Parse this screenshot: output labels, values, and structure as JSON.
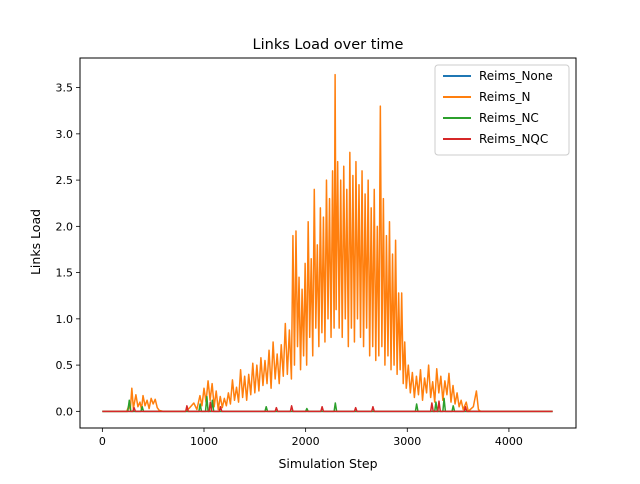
{
  "chart_data": {
    "type": "line",
    "title": "Links Load over time",
    "xlabel": "Simulation Step",
    "ylabel": "Links Load",
    "xlim": [
      -220,
      4660
    ],
    "ylim": [
      -0.18,
      3.82
    ],
    "xticks": [
      0,
      1000,
      2000,
      3000,
      4000
    ],
    "xtick_labels": [
      "0",
      "1000",
      "2000",
      "3000",
      "4000"
    ],
    "yticks": [
      0.0,
      0.5,
      1.0,
      1.5,
      2.0,
      2.5,
      3.0,
      3.5
    ],
    "ytick_labels": [
      "0.0",
      "0.5",
      "1.0",
      "1.5",
      "2.0",
      "2.5",
      "3.0",
      "3.5"
    ],
    "grid": false,
    "legend_position": "top-right",
    "series": [
      {
        "name": "Reims_None",
        "color": "#1f77b4",
        "points": [
          [
            0,
            0
          ],
          [
            4430,
            0
          ]
        ]
      },
      {
        "name": "Reims_N",
        "color": "#ff7f0e",
        "points": [
          [
            0,
            0
          ],
          [
            240,
            0
          ],
          [
            260,
            0.06
          ],
          [
            275,
            0.02
          ],
          [
            290,
            0.25
          ],
          [
            305,
            0.03
          ],
          [
            330,
            0.18
          ],
          [
            350,
            0.05
          ],
          [
            370,
            0.1
          ],
          [
            385,
            0.02
          ],
          [
            400,
            0.17
          ],
          [
            420,
            0.06
          ],
          [
            440,
            0.12
          ],
          [
            460,
            0.03
          ],
          [
            480,
            0.14
          ],
          [
            500,
            0.08
          ],
          [
            520,
            0.13
          ],
          [
            540,
            0.04
          ],
          [
            560,
            0.01
          ],
          [
            600,
            0.0
          ],
          [
            820,
            0.0
          ],
          [
            860,
            0.04
          ],
          [
            900,
            0.09
          ],
          [
            930,
            0.02
          ],
          [
            960,
            0.17
          ],
          [
            980,
            0.06
          ],
          [
            1000,
            0.25
          ],
          [
            1020,
            0.1
          ],
          [
            1040,
            0.33
          ],
          [
            1060,
            0.12
          ],
          [
            1080,
            0.3
          ],
          [
            1100,
            0.05
          ],
          [
            1120,
            0.22
          ],
          [
            1140,
            0.02
          ],
          [
            1160,
            0.16
          ],
          [
            1180,
            0.04
          ],
          [
            1200,
            0.14
          ],
          [
            1220,
            0.06
          ],
          [
            1240,
            0.2
          ],
          [
            1260,
            0.08
          ],
          [
            1280,
            0.34
          ],
          [
            1300,
            0.12
          ],
          [
            1320,
            0.26
          ],
          [
            1340,
            0.1
          ],
          [
            1360,
            0.45
          ],
          [
            1380,
            0.15
          ],
          [
            1400,
            0.38
          ],
          [
            1420,
            0.12
          ],
          [
            1440,
            0.4
          ],
          [
            1460,
            0.18
          ],
          [
            1480,
            0.52
          ],
          [
            1500,
            0.2
          ],
          [
            1520,
            0.5
          ],
          [
            1540,
            0.22
          ],
          [
            1560,
            0.58
          ],
          [
            1580,
            0.28
          ],
          [
            1600,
            0.55
          ],
          [
            1620,
            0.3
          ],
          [
            1640,
            0.66
          ],
          [
            1660,
            0.25
          ],
          [
            1680,
            0.75
          ],
          [
            1700,
            0.35
          ],
          [
            1720,
            0.62
          ],
          [
            1740,
            0.3
          ],
          [
            1760,
            0.72
          ],
          [
            1780,
            0.38
          ],
          [
            1800,
            0.95
          ],
          [
            1820,
            0.4
          ],
          [
            1840,
            0.88
          ],
          [
            1860,
            0.35
          ],
          [
            1875,
            1.9
          ],
          [
            1890,
            0.5
          ],
          [
            1905,
            1.95
          ],
          [
            1920,
            0.7
          ],
          [
            1935,
            1.45
          ],
          [
            1950,
            0.45
          ],
          [
            1965,
            1.32
          ],
          [
            1980,
            0.6
          ],
          [
            1995,
            1.6
          ],
          [
            2010,
            0.5
          ],
          [
            2025,
            2.05
          ],
          [
            2040,
            0.8
          ],
          [
            2055,
            1.65
          ],
          [
            2070,
            0.6
          ],
          [
            2085,
            2.4
          ],
          [
            2100,
            0.9
          ],
          [
            2115,
            1.8
          ],
          [
            2130,
            0.7
          ],
          [
            2145,
            2.2
          ],
          [
            2160,
            0.85
          ],
          [
            2175,
            2.1
          ],
          [
            2190,
            0.75
          ],
          [
            2205,
            2.5
          ],
          [
            2220,
            1.0
          ],
          [
            2235,
            2.3
          ],
          [
            2250,
            0.8
          ],
          [
            2265,
            2.6
          ],
          [
            2280,
            0.9
          ],
          [
            2290,
            3.64
          ],
          [
            2300,
            1.1
          ],
          [
            2315,
            2.7
          ],
          [
            2330,
            0.9
          ],
          [
            2345,
            2.5
          ],
          [
            2360,
            0.8
          ],
          [
            2375,
            2.65
          ],
          [
            2390,
            1.0
          ],
          [
            2405,
            2.4
          ],
          [
            2420,
            0.7
          ],
          [
            2435,
            2.8
          ],
          [
            2450,
            0.9
          ],
          [
            2465,
            2.55
          ],
          [
            2480,
            0.75
          ],
          [
            2495,
            2.7
          ],
          [
            2510,
            1.0
          ],
          [
            2525,
            2.45
          ],
          [
            2540,
            0.8
          ],
          [
            2555,
            2.6
          ],
          [
            2570,
            0.7
          ],
          [
            2585,
            2.35
          ],
          [
            2600,
            0.9
          ],
          [
            2615,
            2.5
          ],
          [
            2630,
            0.6
          ],
          [
            2645,
            2.2
          ],
          [
            2660,
            0.7
          ],
          [
            2675,
            2.4
          ],
          [
            2690,
            0.55
          ],
          [
            2705,
            2.0
          ],
          [
            2720,
            0.6
          ],
          [
            2735,
            3.3
          ],
          [
            2750,
            0.7
          ],
          [
            2765,
            2.3
          ],
          [
            2780,
            0.5
          ],
          [
            2795,
            1.9
          ],
          [
            2810,
            0.6
          ],
          [
            2825,
            2.05
          ],
          [
            2840,
            0.45
          ],
          [
            2855,
            1.7
          ],
          [
            2870,
            0.5
          ],
          [
            2885,
            1.85
          ],
          [
            2900,
            0.4
          ],
          [
            2915,
            1.28
          ],
          [
            2930,
            0.45
          ],
          [
            2945,
            1.28
          ],
          [
            2960,
            0.3
          ],
          [
            2975,
            0.75
          ],
          [
            2990,
            0.25
          ],
          [
            3010,
            0.5
          ],
          [
            3030,
            0.2
          ],
          [
            3050,
            0.42
          ],
          [
            3070,
            0.15
          ],
          [
            3090,
            0.38
          ],
          [
            3110,
            0.18
          ],
          [
            3130,
            0.45
          ],
          [
            3150,
            0.12
          ],
          [
            3170,
            0.36
          ],
          [
            3190,
            0.2
          ],
          [
            3210,
            0.5
          ],
          [
            3230,
            0.15
          ],
          [
            3250,
            0.32
          ],
          [
            3270,
            0.1
          ],
          [
            3290,
            0.46
          ],
          [
            3310,
            0.2
          ],
          [
            3330,
            0.38
          ],
          [
            3350,
            0.12
          ],
          [
            3370,
            0.33
          ],
          [
            3390,
            0.18
          ],
          [
            3410,
            0.41
          ],
          [
            3430,
            0.1
          ],
          [
            3450,
            0.28
          ],
          [
            3470,
            0.08
          ],
          [
            3490,
            0.2
          ],
          [
            3510,
            0.05
          ],
          [
            3530,
            0.12
          ],
          [
            3550,
            0.02
          ],
          [
            3580,
            0.1
          ],
          [
            3600,
            0.0
          ],
          [
            3650,
            0.05
          ],
          [
            3680,
            0.22
          ],
          [
            3700,
            0.02
          ],
          [
            3720,
            0.0
          ],
          [
            4430,
            0.0
          ]
        ]
      },
      {
        "name": "Reims_NC",
        "color": "#2ca02c",
        "points": [
          [
            0,
            0
          ],
          [
            250,
            0
          ],
          [
            265,
            0.12
          ],
          [
            280,
            0
          ],
          [
            380,
            0
          ],
          [
            392,
            0.05
          ],
          [
            405,
            0
          ],
          [
            950,
            0
          ],
          [
            962,
            0.08
          ],
          [
            975,
            0
          ],
          [
            1015,
            0
          ],
          [
            1028,
            0.16
          ],
          [
            1040,
            0
          ],
          [
            1070,
            0
          ],
          [
            1082,
            0.12
          ],
          [
            1095,
            0
          ],
          [
            1600,
            0
          ],
          [
            1612,
            0.05
          ],
          [
            1625,
            0
          ],
          [
            2000,
            0
          ],
          [
            2012,
            0.03
          ],
          [
            2025,
            0
          ],
          [
            2280,
            0
          ],
          [
            2292,
            0.09
          ],
          [
            2305,
            0
          ],
          [
            3080,
            0
          ],
          [
            3092,
            0.08
          ],
          [
            3105,
            0
          ],
          [
            3270,
            0
          ],
          [
            3282,
            0.1
          ],
          [
            3295,
            0
          ],
          [
            3350,
            0
          ],
          [
            3362,
            0.14
          ],
          [
            3375,
            0
          ],
          [
            3440,
            0
          ],
          [
            3452,
            0.06
          ],
          [
            3465,
            0
          ],
          [
            4430,
            0
          ]
        ]
      },
      {
        "name": "Reims_NQC",
        "color": "#d62728",
        "points": [
          [
            0,
            0
          ],
          [
            300,
            0
          ],
          [
            312,
            0.04
          ],
          [
            325,
            0
          ],
          [
            820,
            0
          ],
          [
            832,
            0.06
          ],
          [
            845,
            0
          ],
          [
            1050,
            0
          ],
          [
            1062,
            0.1
          ],
          [
            1075,
            0
          ],
          [
            1150,
            0
          ],
          [
            1162,
            0.05
          ],
          [
            1175,
            0
          ],
          [
            1700,
            0
          ],
          [
            1712,
            0.04
          ],
          [
            1725,
            0
          ],
          [
            1850,
            0
          ],
          [
            1862,
            0.06
          ],
          [
            1875,
            0
          ],
          [
            2150,
            0
          ],
          [
            2162,
            0.05
          ],
          [
            2175,
            0
          ],
          [
            2480,
            0
          ],
          [
            2492,
            0.04
          ],
          [
            2505,
            0
          ],
          [
            2650,
            0
          ],
          [
            2662,
            0.05
          ],
          [
            2675,
            0
          ],
          [
            3230,
            0
          ],
          [
            3242,
            0.09
          ],
          [
            3255,
            0
          ],
          [
            3300,
            0
          ],
          [
            3312,
            0.11
          ],
          [
            3325,
            0
          ],
          [
            3560,
            0
          ],
          [
            3572,
            0.05
          ],
          [
            3585,
            0
          ],
          [
            4430,
            0
          ]
        ]
      }
    ]
  }
}
